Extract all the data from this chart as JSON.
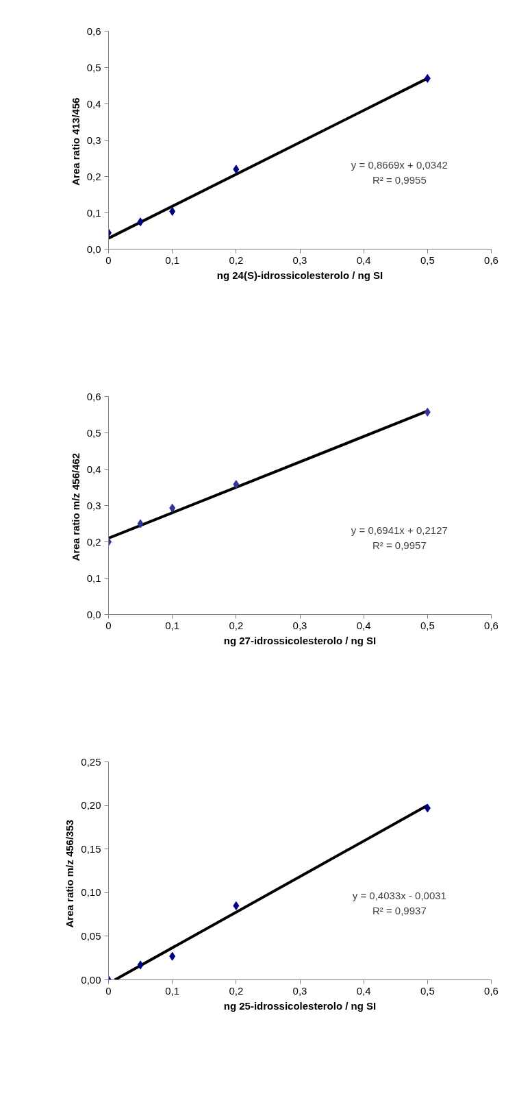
{
  "chart_data": [
    {
      "type": "scatter",
      "xlabel": "ng 24(S)-idrossicolesterolo / ng SI",
      "ylabel": "Area  ratio 413/456",
      "x": [
        0,
        0.05,
        0.1,
        0.2,
        0.5
      ],
      "series": [
        {
          "color": "#000080",
          "marker": "diamond",
          "values": [
            0.045,
            0.075,
            0.104,
            0.22,
            0.47
          ]
        },
        {
          "type": "line",
          "marker": "none",
          "color": "#000000",
          "x": [
            0,
            0.5
          ],
          "values": [
            0.03,
            0.47
          ]
        }
      ],
      "xlim": [
        0,
        0.6
      ],
      "ylim": [
        0,
        0.6
      ],
      "xticks": [
        {
          "value": 0,
          "label": "0"
        },
        {
          "value": 0.1,
          "label": "0,1"
        },
        {
          "value": 0.2,
          "label": "0,2"
        },
        {
          "value": 0.3,
          "label": "0,3"
        },
        {
          "value": 0.4,
          "label": "0,4"
        },
        {
          "value": 0.5,
          "label": "0,5"
        },
        {
          "value": 0.6,
          "label": "0,6"
        }
      ],
      "yticks": [
        {
          "value": 0,
          "label": "0,0"
        },
        {
          "value": 0.1,
          "label": "0,1"
        },
        {
          "value": 0.2,
          "label": "0,2"
        },
        {
          "value": 0.3,
          "label": "0,3"
        },
        {
          "value": 0.4,
          "label": "0,4"
        },
        {
          "value": 0.5,
          "label": "0,5"
        },
        {
          "value": 0.6,
          "label": "0,6"
        }
      ],
      "annotations": [
        "y = 0,8669x + 0,0342",
        "R² = 0,9955"
      ],
      "grid": false
    },
    {
      "type": "scatter",
      "xlabel": "ng 27-idrossicolesterolo / ng SI",
      "ylabel": "Area  ratio m/z 456/462",
      "x": [
        0,
        0.05,
        0.1,
        0.2,
        0.5
      ],
      "series": [
        {
          "color": "#333399",
          "marker": "diamond",
          "values": [
            0.2,
            0.25,
            0.293,
            0.358,
            0.557
          ]
        },
        {
          "type": "line",
          "marker": "none",
          "color": "#000000",
          "x": [
            0,
            0.5
          ],
          "values": [
            0.21,
            0.56
          ]
        }
      ],
      "xlim": [
        0,
        0.6
      ],
      "ylim": [
        0,
        0.6
      ],
      "xticks": [
        {
          "value": 0,
          "label": "0"
        },
        {
          "value": 0.1,
          "label": "0,1"
        },
        {
          "value": 0.2,
          "label": "0,2"
        },
        {
          "value": 0.3,
          "label": "0,3"
        },
        {
          "value": 0.4,
          "label": "0,4"
        },
        {
          "value": 0.5,
          "label": "0,5"
        },
        {
          "value": 0.6,
          "label": "0,6"
        }
      ],
      "yticks": [
        {
          "value": 0,
          "label": "0,0"
        },
        {
          "value": 0.1,
          "label": "0,1"
        },
        {
          "value": 0.2,
          "label": "0,2"
        },
        {
          "value": 0.3,
          "label": "0,3"
        },
        {
          "value": 0.4,
          "label": "0,4"
        },
        {
          "value": 0.5,
          "label": "0,5"
        },
        {
          "value": 0.6,
          "label": "0,6"
        }
      ],
      "annotations": [
        "y = 0,6941x + 0,2127",
        "R² = 0,9957"
      ],
      "grid": false
    },
    {
      "type": "scatter",
      "xlabel": "ng 25-idrossicolesterolo / ng SI",
      "ylabel": "Area  ratio  m/z 456/353",
      "x": [
        0,
        0.05,
        0.1,
        0.2,
        0.5
      ],
      "series": [
        {
          "color": "#000080",
          "marker": "diamond",
          "values": [
            0,
            0.017,
            0.027,
            0.085,
            0.197
          ]
        },
        {
          "type": "line",
          "marker": "none",
          "color": "#000000",
          "x": [
            0.01,
            0.5
          ],
          "values": [
            0,
            0.2
          ]
        }
      ],
      "xlim": [
        0,
        0.6
      ],
      "ylim": [
        0,
        0.25
      ],
      "xticks": [
        {
          "value": 0,
          "label": "0"
        },
        {
          "value": 0.1,
          "label": "0,1"
        },
        {
          "value": 0.2,
          "label": "0,2"
        },
        {
          "value": 0.3,
          "label": "0,3"
        },
        {
          "value": 0.4,
          "label": "0,4"
        },
        {
          "value": 0.5,
          "label": "0,5"
        },
        {
          "value": 0.6,
          "label": "0,6"
        }
      ],
      "yticks": [
        {
          "value": 0,
          "label": "0,00"
        },
        {
          "value": 0.05,
          "label": "0,05"
        },
        {
          "value": 0.1,
          "label": "0,10"
        },
        {
          "value": 0.15,
          "label": "0,15"
        },
        {
          "value": 0.2,
          "label": "0,20"
        },
        {
          "value": 0.25,
          "label": "0,25"
        }
      ],
      "annotations": [
        "y = 0,4033x - 0,0031",
        "R² = 0,9937"
      ],
      "grid": false
    }
  ]
}
